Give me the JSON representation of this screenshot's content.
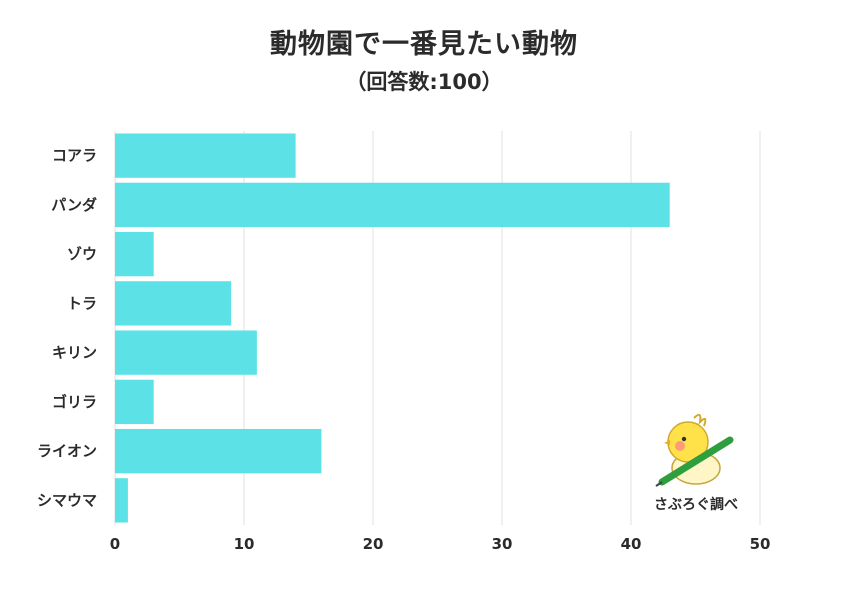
{
  "header": {
    "title": "動物園で一番見たい動物",
    "subtitle": "（回答数:100）"
  },
  "logo": {
    "text": "さぶろぐ調べ"
  },
  "colors": {
    "bar": "#5ce1e6",
    "grid": "#e2e2e2",
    "text": "#2b2b2b"
  },
  "chart_data": {
    "type": "bar",
    "orientation": "horizontal",
    "title": "動物園で一番見たい動物",
    "subtitle": "（回答数:100）",
    "categories": [
      "コアラ",
      "パンダ",
      "ゾウ",
      "トラ",
      "キリン",
      "ゴリラ",
      "ライオン",
      "シマウマ"
    ],
    "values": [
      14,
      43,
      3,
      9,
      11,
      3,
      16,
      1
    ],
    "xlim": [
      0,
      50
    ],
    "xticks": [
      "0",
      "10",
      "20",
      "30",
      "40",
      "50"
    ],
    "grid": true,
    "legend": "none"
  }
}
